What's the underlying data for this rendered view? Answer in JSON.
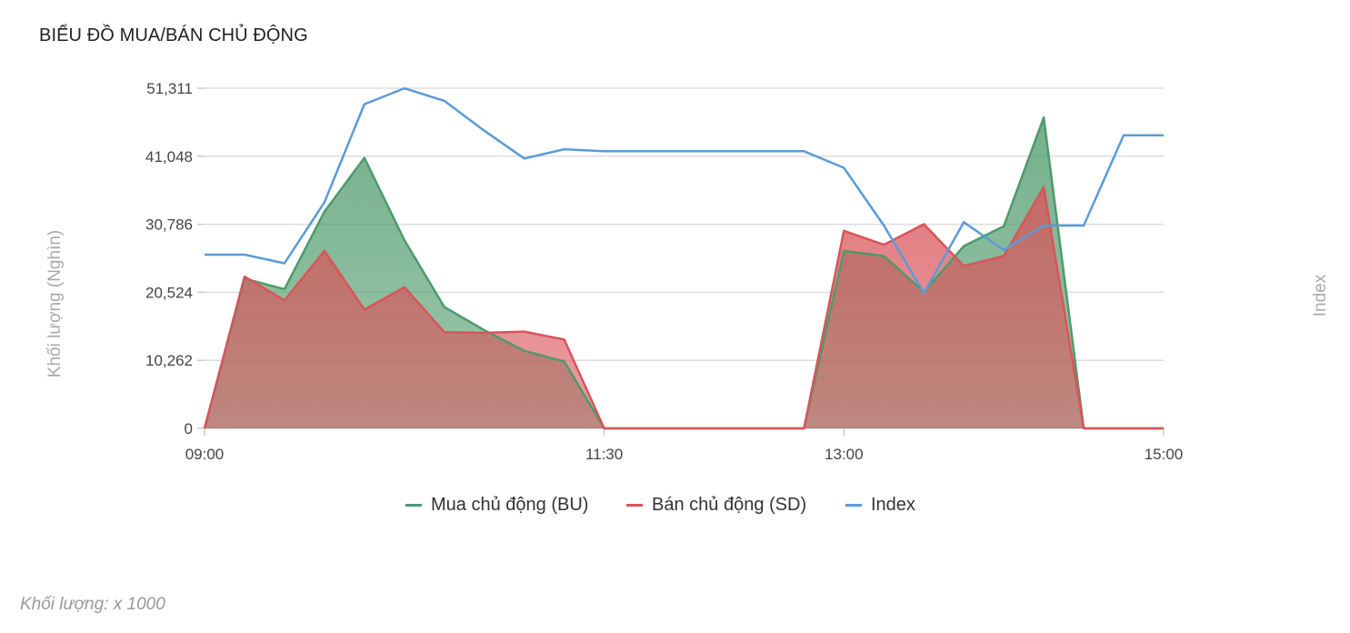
{
  "title": "BIỂU ĐỒ MUA/BÁN CHỦ ĐỘNG",
  "footnote": "Khối lượng: x 1000",
  "colors": {
    "buy": "#4e9a6b",
    "sell": "#d9545a",
    "index": "#5a9bd8",
    "grid": "#dddddd"
  },
  "legend": [
    {
      "label": "Mua chủ động (BU)",
      "color": "#4e9a6b"
    },
    {
      "label": "Bán chủ động (SD)",
      "color": "#d9545a"
    },
    {
      "label": "Index",
      "color": "#5a9bd8"
    }
  ],
  "chart_data": {
    "type": "area",
    "ylabel": "Khối lượng (Nghìn)",
    "y2label": "Index",
    "ylim": [
      0,
      51311
    ],
    "yticks": [
      "0",
      "10,262",
      "20,524",
      "30,786",
      "41,048",
      "51,311"
    ],
    "xlim": [
      "09:00",
      "15:00"
    ],
    "xticks": [
      "09:00",
      "11:30",
      "13:00",
      "15:00"
    ],
    "x": [
      "09:00",
      "09:15",
      "09:30",
      "09:45",
      "10:00",
      "10:15",
      "10:30",
      "10:45",
      "11:00",
      "11:15",
      "11:30",
      "11:45",
      "12:00",
      "12:15",
      "12:30",
      "12:45",
      "13:00",
      "13:15",
      "13:30",
      "13:45",
      "14:00",
      "14:15",
      "14:30",
      "14:45",
      "15:00"
    ],
    "series": [
      {
        "name": "Mua chủ động (BU)",
        "values": [
          0,
          22600,
          21000,
          32700,
          40800,
          28400,
          18300,
          14800,
          11700,
          10100,
          0,
          0,
          0,
          0,
          0,
          0,
          26800,
          26000,
          20600,
          27500,
          30500,
          46900,
          0,
          0,
          0
        ]
      },
      {
        "name": "Bán chủ động (SD)",
        "values": [
          0,
          22900,
          19300,
          26800,
          17900,
          21300,
          14500,
          14400,
          14600,
          13400,
          0,
          0,
          0,
          0,
          0,
          0,
          29800,
          27700,
          30800,
          24500,
          26000,
          36400,
          0,
          0,
          0
        ]
      },
      {
        "name": "Index",
        "values": [
          26200,
          26200,
          24900,
          34100,
          48900,
          51300,
          49400,
          44900,
          40700,
          42100,
          41800,
          41800,
          41800,
          41800,
          41800,
          41800,
          39300,
          30600,
          20400,
          31100,
          26900,
          30600,
          30600,
          44200,
          44200
        ]
      }
    ],
    "grid": true,
    "legend_position": "bottom"
  }
}
